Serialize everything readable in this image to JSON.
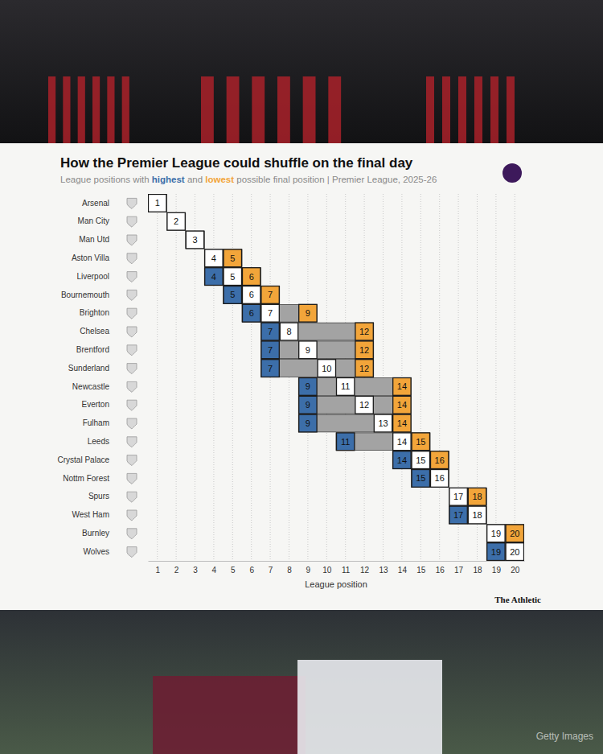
{
  "chart_data": {
    "type": "range",
    "title": "How the Premier League could shuffle on the final day",
    "subtitle": "League positions with highest and lowest possible final position | Premier League, 2025-26",
    "categories": [
      "Arsenal",
      "Man City",
      "Man Utd",
      "Aston Villa",
      "Liverpool",
      "Bournemouth",
      "Brighton",
      "Chelsea",
      "Brentford",
      "Sunderland",
      "Newcastle",
      "Everton",
      "Fulham",
      "Leeds",
      "Crystal Palace",
      "Nottm Forest",
      "Spurs",
      "West Ham",
      "Burnley",
      "Wolves"
    ],
    "values": [
      1,
      2,
      3,
      4,
      5,
      6,
      7,
      8,
      9,
      10,
      11,
      12,
      13,
      14,
      15,
      16,
      17,
      18,
      19,
      20
    ],
    "color": "#ffffff",
    "series": [
      {
        "name": "highest",
        "color": "#3c6ea9",
        "values": [
          1,
          2,
          3,
          4,
          4,
          5,
          6,
          7,
          7,
          7,
          9,
          9,
          9,
          11,
          14,
          15,
          17,
          17,
          19,
          19
        ]
      },
      {
        "name": "lowest",
        "color": "#f2a53a",
        "values": [
          1,
          2,
          3,
          5,
          6,
          7,
          9,
          12,
          12,
          12,
          14,
          14,
          14,
          15,
          16,
          16,
          18,
          18,
          20,
          20
        ]
      }
    ],
    "x_label": "League position",
    "xlim": [
      0.5,
      20.5
    ],
    "xticks": [
      1,
      2,
      3,
      4,
      5,
      6,
      7,
      8,
      9,
      10,
      11,
      12,
      13,
      14,
      15,
      16,
      17,
      18,
      19,
      20
    ],
    "grid": true,
    "data_labels": true,
    "source": "The Athletic",
    "credit": "Getty Images"
  }
}
